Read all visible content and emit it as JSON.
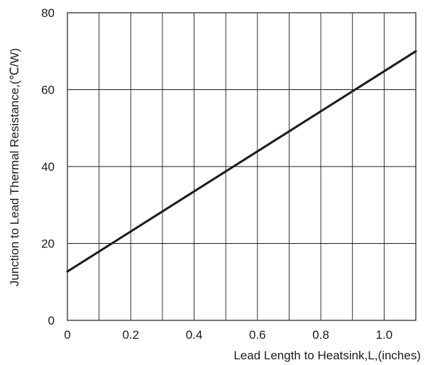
{
  "chart_data": {
    "type": "line",
    "title": "",
    "xlabel": "Lead Length to Heatsink,L,(inches)",
    "ylabel": "Junction to Lead Thermal Resistance,(℃/W)",
    "xlim": [
      0,
      1.1
    ],
    "ylim": [
      0,
      80
    ],
    "grid": true,
    "x_tick_labels": [
      {
        "value": 0,
        "label": "0"
      },
      {
        "value": 0.2,
        "label": "0.2"
      },
      {
        "value": 0.4,
        "label": "0.4"
      },
      {
        "value": 0.6,
        "label": "0.6"
      },
      {
        "value": 0.8,
        "label": "0.8"
      },
      {
        "value": 1.0,
        "label": "1.0"
      }
    ],
    "y_tick_labels": [
      {
        "value": 0,
        "label": "0"
      },
      {
        "value": 20,
        "label": "20"
      },
      {
        "value": 40,
        "label": "40"
      },
      {
        "value": 60,
        "label": "60"
      },
      {
        "value": 80,
        "label": "80"
      }
    ],
    "x_grid_step": 0.1,
    "y_grid_step": 20,
    "series": [
      {
        "x": [
          0,
          1.1
        ],
        "y": [
          12.7,
          70
        ],
        "color": "#1a1a1a"
      }
    ]
  }
}
